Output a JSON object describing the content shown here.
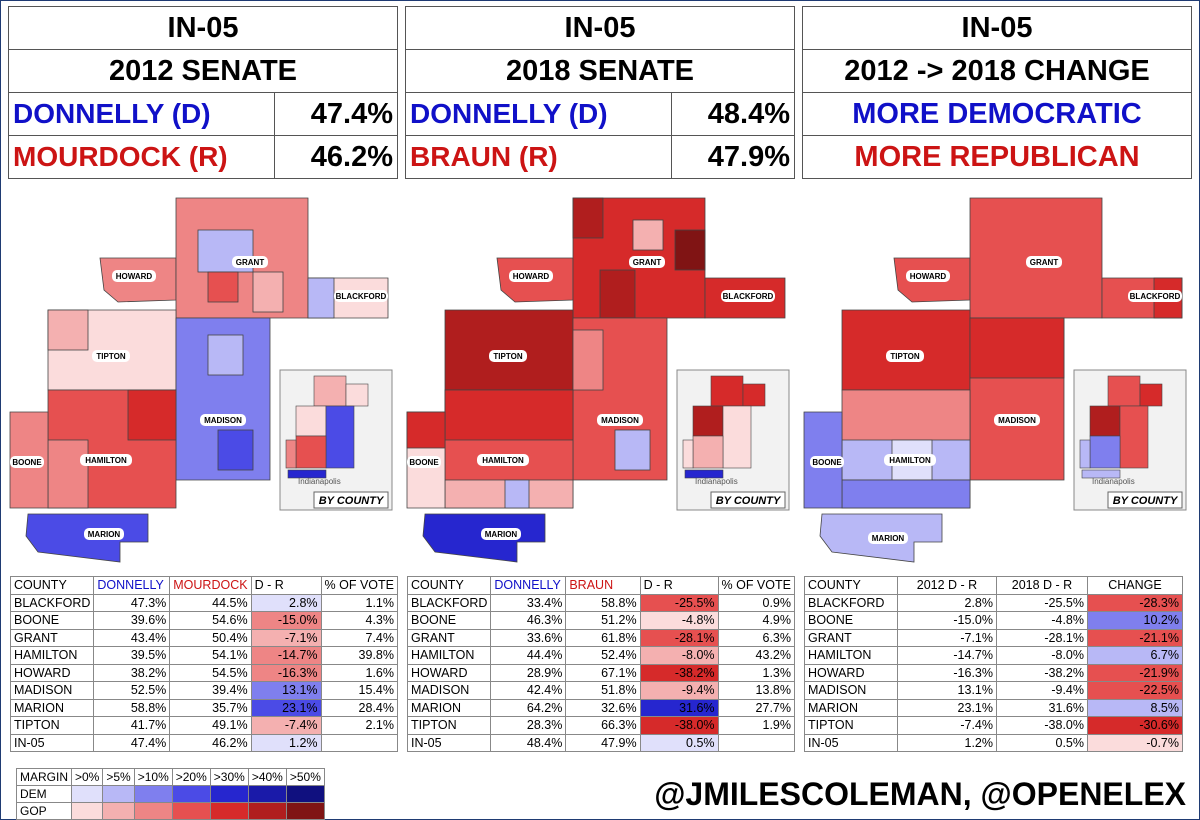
{
  "colors": {
    "dem": "#1010c8",
    "gop": "#cc1414"
  },
  "panels": [
    {
      "title": "IN-05",
      "subtitle": "2012 SENATE",
      "rows": [
        {
          "cand": "DONNELLY (D)",
          "pct": "47.4%",
          "party": "dem"
        },
        {
          "cand": "MOURDOCK (R)",
          "pct": "46.2%",
          "party": "gop"
        }
      ]
    },
    {
      "title": "IN-05",
      "subtitle": "2018 SENATE",
      "rows": [
        {
          "cand": "DONNELLY (D)",
          "pct": "48.4%",
          "party": "dem"
        },
        {
          "cand": "BRAUN (R)",
          "pct": "47.9%",
          "party": "gop"
        }
      ]
    },
    {
      "title": "IN-05",
      "subtitle": "2012 -> 2018 CHANGE",
      "lines": [
        {
          "text": "MORE DEMOCRATIC",
          "party": "dem"
        },
        {
          "text": "MORE REPUBLICAN",
          "party": "gop"
        }
      ]
    }
  ],
  "map_labels": {
    "counties": [
      "HOWARD",
      "GRANT",
      "BLACKFORD",
      "TIPTON",
      "MADISON",
      "BOONE",
      "HAMILTON",
      "MARION"
    ],
    "inset": "BY COUNTY",
    "city": "Indianapolis"
  },
  "chart_data": [
    {
      "type": "table",
      "title": "2012 SENATE",
      "columns": [
        "COUNTY",
        "DONNELLY",
        "MOURDOCK",
        "D - R",
        "% OF VOTE"
      ],
      "rows": [
        [
          "BLACKFORD",
          "47.3%",
          "44.5%",
          "2.8%",
          "1.1%"
        ],
        [
          "BOONE",
          "39.6%",
          "54.6%",
          "-15.0%",
          "4.3%"
        ],
        [
          "GRANT",
          "43.4%",
          "50.4%",
          "-7.1%",
          "7.4%"
        ],
        [
          "HAMILTON",
          "39.5%",
          "54.1%",
          "-14.7%",
          "39.8%"
        ],
        [
          "HOWARD",
          "38.2%",
          "54.5%",
          "-16.3%",
          "1.6%"
        ],
        [
          "MADISON",
          "52.5%",
          "39.4%",
          "13.1%",
          "15.4%"
        ],
        [
          "MARION",
          "58.8%",
          "35.7%",
          "23.1%",
          "28.4%"
        ],
        [
          "TIPTON",
          "41.7%",
          "49.1%",
          "-7.4%",
          "2.1%"
        ],
        [
          "IN-05",
          "47.4%",
          "46.2%",
          "1.2%",
          ""
        ]
      ]
    },
    {
      "type": "table",
      "title": "2018 SENATE",
      "columns": [
        "COUNTY",
        "DONNELLY",
        "BRAUN",
        "D - R",
        "% OF VOTE"
      ],
      "rows": [
        [
          "BLACKFORD",
          "33.4%",
          "58.8%",
          "-25.5%",
          "0.9%"
        ],
        [
          "BOONE",
          "46.3%",
          "51.2%",
          "-4.8%",
          "4.9%"
        ],
        [
          "GRANT",
          "33.6%",
          "61.8%",
          "-28.1%",
          "6.3%"
        ],
        [
          "HAMILTON",
          "44.4%",
          "52.4%",
          "-8.0%",
          "43.2%"
        ],
        [
          "HOWARD",
          "28.9%",
          "67.1%",
          "-38.2%",
          "1.3%"
        ],
        [
          "MADISON",
          "42.4%",
          "51.8%",
          "-9.4%",
          "13.8%"
        ],
        [
          "MARION",
          "64.2%",
          "32.6%",
          "31.6%",
          "27.7%"
        ],
        [
          "TIPTON",
          "28.3%",
          "66.3%",
          "-38.0%",
          "1.9%"
        ],
        [
          "IN-05",
          "48.4%",
          "47.9%",
          "0.5%",
          ""
        ]
      ]
    },
    {
      "type": "table",
      "title": "2012 -> 2018 CHANGE",
      "columns": [
        "COUNTY",
        "2012 D - R",
        "2018 D - R",
        "CHANGE"
      ],
      "rows": [
        [
          "BLACKFORD",
          "2.8%",
          "-25.5%",
          "-28.3%"
        ],
        [
          "BOONE",
          "-15.0%",
          "-4.8%",
          "10.2%"
        ],
        [
          "GRANT",
          "-7.1%",
          "-28.1%",
          "-21.1%"
        ],
        [
          "HAMILTON",
          "-14.7%",
          "-8.0%",
          "6.7%"
        ],
        [
          "HOWARD",
          "-16.3%",
          "-38.2%",
          "-21.9%"
        ],
        [
          "MADISON",
          "13.1%",
          "-9.4%",
          "-22.5%"
        ],
        [
          "MARION",
          "23.1%",
          "31.6%",
          "8.5%"
        ],
        [
          "TIPTON",
          "-7.4%",
          "-38.0%",
          "-30.6%"
        ],
        [
          "IN-05",
          "1.2%",
          "0.5%",
          "-0.7%"
        ]
      ]
    }
  ],
  "legend": {
    "header": [
      "MARGIN",
      ">0%",
      ">5%",
      ">10%",
      ">20%",
      ">30%",
      ">40%",
      ">50%"
    ],
    "dem_label": "DEM",
    "gop_label": "GOP",
    "dem": [
      "#e0e0fb",
      "#b8b8f6",
      "#7f7fee",
      "#4b4be6",
      "#2626cf",
      "#1a1aa9",
      "#10107f"
    ],
    "gop": [
      "#fbdcdc",
      "#f4b0b0",
      "#ee8585",
      "#e65050",
      "#d62a2a",
      "#b01e1e",
      "#801414"
    ]
  },
  "credit": "@JMILESCOLEMAN, @OPENELEX"
}
